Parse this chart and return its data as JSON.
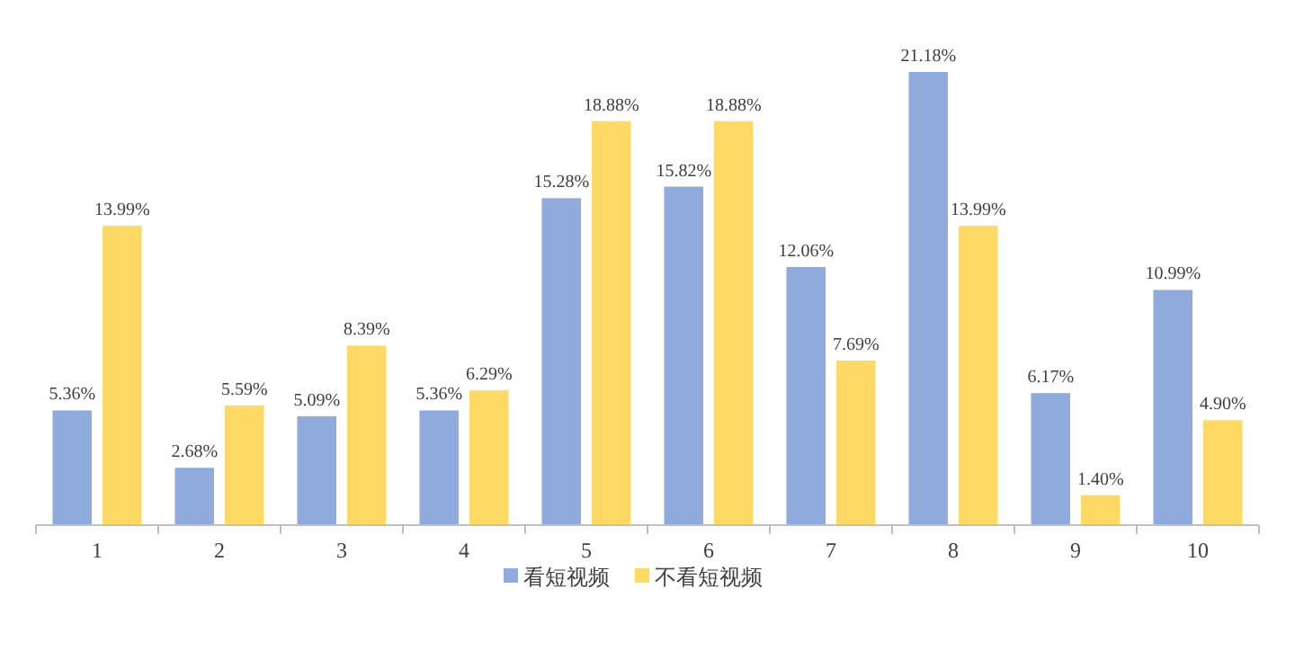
{
  "chart_data": {
    "type": "bar",
    "categories": [
      "1",
      "2",
      "3",
      "4",
      "5",
      "6",
      "7",
      "8",
      "9",
      "10"
    ],
    "series": [
      {
        "name": "看短视频",
        "color": "#8faadc",
        "values": [
          5.36,
          2.68,
          5.09,
          5.36,
          15.28,
          15.82,
          12.06,
          21.18,
          6.17,
          10.99
        ],
        "value_labels": [
          "5.36%",
          "2.68%",
          "5.09%",
          "5.36%",
          "15.28%",
          "15.82%",
          "12.06%",
          "21.18%",
          "6.17%",
          "10.99%"
        ]
      },
      {
        "name": "不看短视频",
        "color": "#ffd966",
        "values": [
          13.99,
          5.59,
          8.39,
          6.29,
          18.88,
          18.88,
          7.69,
          13.99,
          1.4,
          4.9
        ],
        "value_labels": [
          "13.99%",
          "5.59%",
          "8.39%",
          "6.29%",
          "18.88%",
          "18.88%",
          "7.69%",
          "13.99%",
          "1.40%",
          "4.90%"
        ]
      }
    ],
    "legend": "bottom",
    "grid": false
  }
}
